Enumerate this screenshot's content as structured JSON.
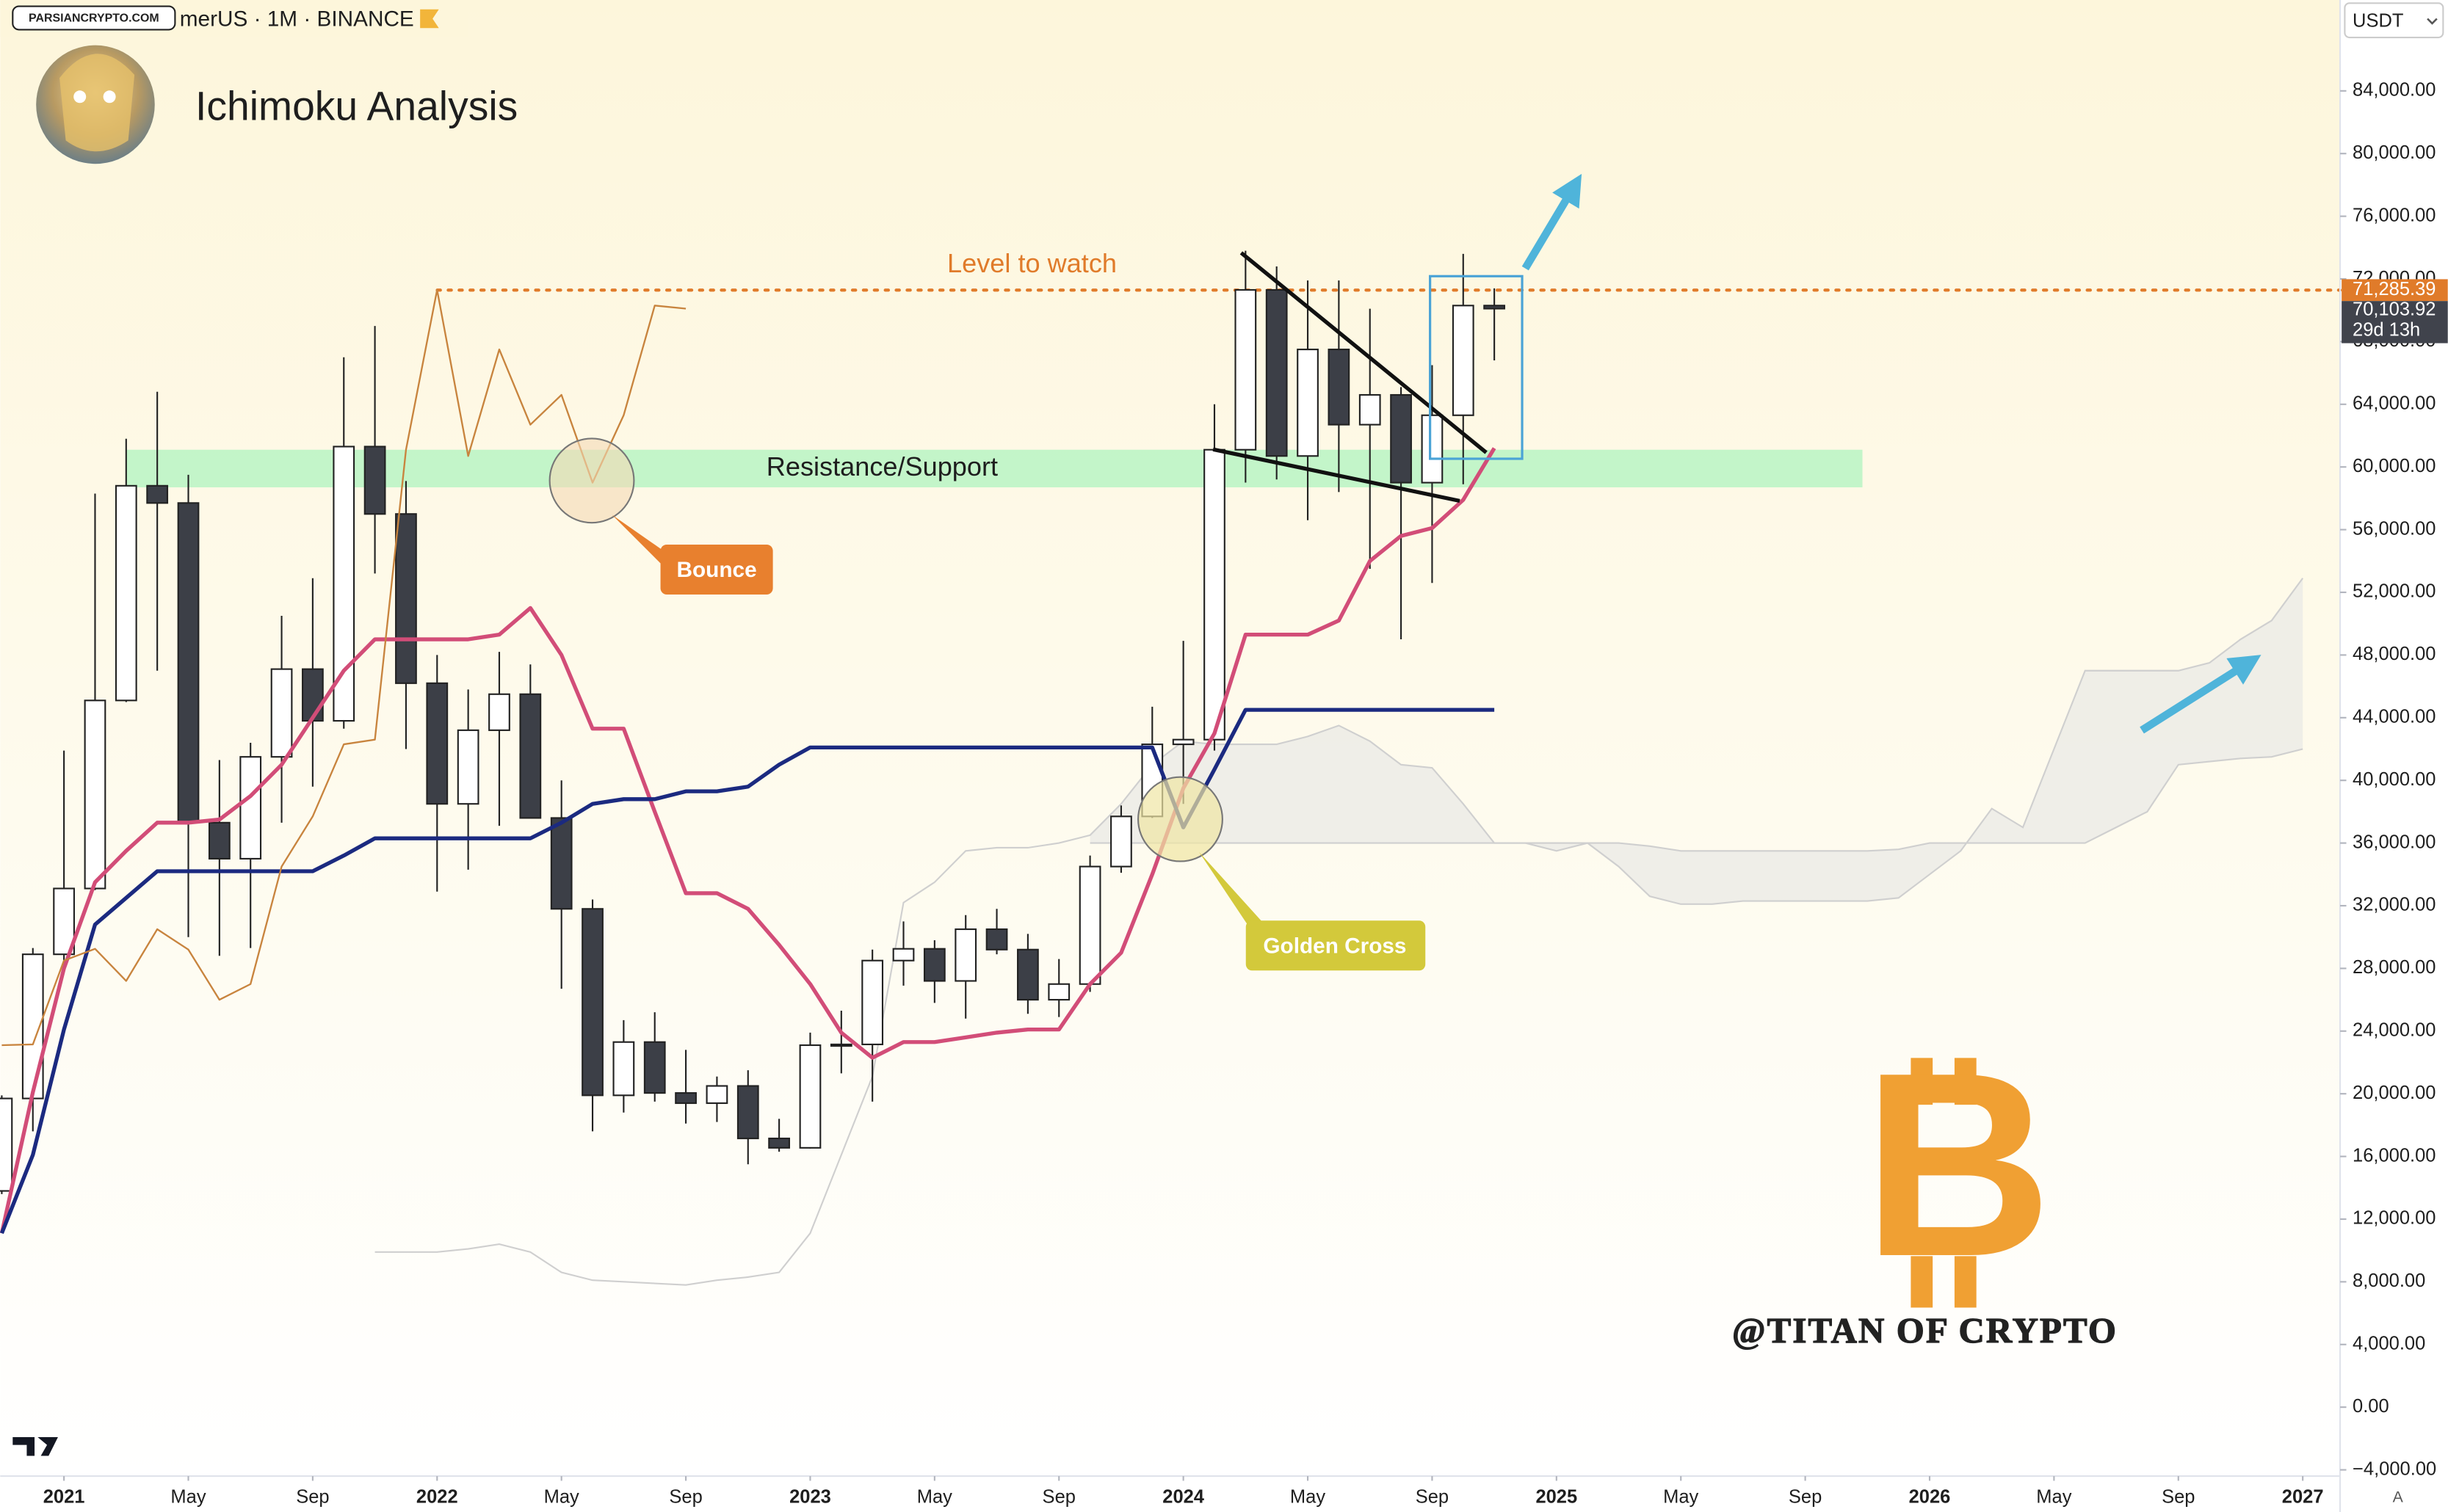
{
  "header": {
    "symbol": "merUS · 1M · BINANCE",
    "watermark": "PARSIANCRYPTO.COM",
    "currency": "USDT",
    "auto_scale": "A"
  },
  "chart_data": {
    "type": "candlestick",
    "title": "Ichimoku Analysis",
    "x": [
      "2020-11",
      "2020-12",
      "2021-01",
      "2021-02",
      "2021-03",
      "2021-04",
      "2021-05",
      "2021-06",
      "2021-07",
      "2021-08",
      "2021-09",
      "2021-10",
      "2021-11",
      "2021-12",
      "2022-01",
      "2022-02",
      "2022-03",
      "2022-04",
      "2022-05",
      "2022-06",
      "2022-07",
      "2022-08",
      "2022-09",
      "2022-10",
      "2022-11",
      "2022-12",
      "2023-01",
      "2023-02",
      "2023-03",
      "2023-04",
      "2023-05",
      "2023-06",
      "2023-07",
      "2023-08",
      "2023-09",
      "2023-10",
      "2023-11",
      "2023-12",
      "2024-01",
      "2024-02",
      "2024-03",
      "2024-04",
      "2024-05",
      "2024-06",
      "2024-07",
      "2024-08",
      "2024-09",
      "2024-10",
      "2024-11"
    ],
    "open": [
      13800,
      19700,
      28900,
      33100,
      45100,
      58800,
      57700,
      37300,
      35000,
      41500,
      47100,
      43800,
      61300,
      57000,
      46200,
      38500,
      43200,
      45500,
      37600,
      31800,
      19900,
      23300,
      20050,
      19400,
      20500,
      17150,
      16550,
      23100,
      23150,
      28500,
      29250,
      27200,
      30500,
      29200,
      26000,
      27000,
      34500,
      37700,
      42300,
      42600,
      61100,
      71300,
      60700,
      67500,
      62700,
      64600,
      59000,
      63300,
      70300
    ],
    "high": [
      19900,
      29300,
      41900,
      58300,
      61800,
      64800,
      59500,
      41300,
      42400,
      50500,
      52900,
      67000,
      69000,
      59100,
      48000,
      45800,
      48200,
      47400,
      40000,
      32400,
      24700,
      25200,
      22800,
      21100,
      21500,
      18400,
      23900,
      25300,
      29200,
      31000,
      29800,
      31400,
      31800,
      30200,
      28600,
      35200,
      38400,
      44700,
      48900,
      64000,
      73800,
      72800,
      71900,
      71900,
      70100,
      65100,
      66500,
      73600,
      71400
    ],
    "low": [
      13600,
      17600,
      28100,
      33000,
      45000,
      47000,
      30000,
      28800,
      29300,
      37300,
      39600,
      43300,
      53200,
      42000,
      32900,
      34300,
      37100,
      37700,
      26700,
      17600,
      18800,
      19500,
      18100,
      18200,
      15500,
      16300,
      16500,
      21300,
      19500,
      26900,
      25800,
      24800,
      28900,
      25100,
      24900,
      26500,
      34100,
      37600,
      38500,
      41900,
      59000,
      59200,
      56600,
      58400,
      53500,
      49000,
      52600,
      58900,
      66800
    ],
    "close": [
      19700,
      28900,
      33100,
      45100,
      58800,
      57700,
      37300,
      35000,
      41500,
      47100,
      43800,
      61300,
      57000,
      46200,
      38500,
      43200,
      45500,
      37600,
      31800,
      19900,
      23300,
      20050,
      19400,
      20500,
      17150,
      16550,
      23100,
      23150,
      28500,
      29250,
      27200,
      30500,
      29200,
      26000,
      27000,
      34500,
      37700,
      42300,
      42600,
      61100,
      71300,
      60700,
      67500,
      62700,
      64600,
      59000,
      63300,
      70300,
      70103.92
    ],
    "up_color": "#ffffff",
    "down_color": "#3c3f47",
    "lines": [
      {
        "color": "#d24d78",
        "width": 2.5,
        "values": [
          11100,
          20100,
          28000,
          33500,
          35500,
          37300,
          37300,
          37500,
          39000,
          41000,
          44000,
          47000,
          49000,
          49000,
          49000,
          49000,
          49300,
          51000,
          48000,
          43300,
          43300,
          38000,
          32800,
          32800,
          31800,
          29500,
          27000,
          23900,
          22300,
          23300,
          23300,
          23600,
          23900,
          24100,
          24100,
          27000,
          29000,
          34000,
          39500,
          43000,
          49300,
          49300,
          49300,
          50200,
          54000,
          55600,
          56100,
          57900,
          61200
        ]
      },
      {
        "color": "#1b2a80",
        "width": 2.5,
        "values": [
          11100,
          16100,
          24100,
          30800,
          32500,
          34200,
          34200,
          34200,
          34200,
          34200,
          34200,
          35200,
          36300,
          36300,
          36300,
          36300,
          36300,
          36300,
          37300,
          38500,
          38800,
          38800,
          39300,
          39300,
          39600,
          41000,
          42100,
          42100,
          42100,
          42100,
          42100,
          42100,
          42100,
          42100,
          42100,
          42100,
          42100,
          42100,
          37000,
          40700,
          44500,
          44500,
          44500,
          44500,
          44500,
          44500,
          44500,
          44500,
          44500
        ]
      },
      {
        "color": "#c8843e",
        "width": 1.1,
        "values": [
          23100,
          23150,
          28500,
          29250,
          27200,
          30500,
          29200,
          26000,
          27000,
          34500,
          37700,
          42300,
          42600,
          61100,
          71300,
          60700,
          67500,
          62700,
          64600,
          59000,
          63300,
          70300,
          70103.92,
          null,
          null,
          null,
          null,
          null,
          null,
          null,
          null,
          null,
          null,
          null,
          null,
          null,
          null,
          null,
          null,
          null,
          null,
          null,
          null,
          null,
          null,
          null,
          null,
          null,
          null
        ]
      }
    ],
    "cloud": {
      "color": "#ebebe6",
      "x": [
        "2021-11",
        "2021-12",
        "2022-01",
        "2022-02",
        "2022-03",
        "2022-04",
        "2022-05",
        "2022-06",
        "2022-07",
        "2022-08",
        "2022-09",
        "2022-10",
        "2022-11",
        "2022-12",
        "2023-01",
        "2023-02",
        "2023-03",
        "2023-04",
        "2023-05",
        "2023-06",
        "2023-07",
        "2023-08",
        "2023-09",
        "2023-10",
        "2023-11",
        "2023-12",
        "2024-01",
        "2024-02",
        "2024-03",
        "2024-04",
        "2024-05",
        "2024-06",
        "2024-07",
        "2024-08",
        "2024-09",
        "2024-10",
        "2024-11",
        "2024-12",
        "2025-01",
        "2025-02",
        "2025-03",
        "2025-04",
        "2025-05",
        "2025-06",
        "2025-07",
        "2025-08",
        "2025-09",
        "2025-10",
        "2025-11",
        "2025-12",
        "2026-01",
        "2026-02",
        "2026-03",
        "2026-04",
        "2026-05",
        "2026-06",
        "2026-07",
        "2026-08",
        "2026-09",
        "2026-10",
        "2026-11",
        "2026-12",
        "2027-01"
      ],
      "span_a": [
        9900,
        9900,
        9900,
        10100,
        10400,
        9900,
        8600,
        8100,
        8000,
        7900,
        7800,
        8100,
        8300,
        8600,
        11100,
        16100,
        21100,
        32200,
        33500,
        35500,
        35700,
        35700,
        36000,
        36500,
        38500,
        41000,
        42500,
        42300,
        42300,
        42300,
        42800,
        43500,
        42500,
        41000,
        40800,
        38500,
        36000,
        36000,
        35500,
        36000,
        34500,
        32600,
        32100,
        32100,
        32300,
        32300,
        32300,
        32300,
        32300,
        32500,
        34000,
        35500,
        38200,
        37000,
        42000,
        47000,
        47000,
        47000,
        47000,
        47500,
        49000,
        50200,
        52900
      ],
      "span_b": [
        null,
        null,
        null,
        null,
        null,
        null,
        null,
        null,
        null,
        null,
        null,
        null,
        null,
        null,
        null,
        null,
        null,
        null,
        null,
        null,
        null,
        null,
        null,
        36000,
        36000,
        36000,
        36000,
        36000,
        36000,
        36000,
        36000,
        36000,
        36000,
        36000,
        36000,
        36000,
        36000,
        36000,
        36000,
        36000,
        36000,
        35800,
        35500,
        35500,
        35500,
        35500,
        35500,
        35500,
        35500,
        35600,
        36000,
        36000,
        36000,
        36000,
        36000,
        36000,
        37000,
        38000,
        41000,
        41200,
        41400,
        41500,
        42000
      ]
    },
    "xlim": [
      "2020-11",
      "2027-02"
    ],
    "xticks": [
      {
        "value": "2021-01",
        "label": "2021"
      },
      {
        "value": "2021-05",
        "label": "May"
      },
      {
        "value": "2021-09",
        "label": "Sep"
      },
      {
        "value": "2022-01",
        "label": "2022"
      },
      {
        "value": "2022-05",
        "label": "May"
      },
      {
        "value": "2022-09",
        "label": "Sep"
      },
      {
        "value": "2023-01",
        "label": "2023"
      },
      {
        "value": "2023-05",
        "label": "May"
      },
      {
        "value": "2023-09",
        "label": "Sep"
      },
      {
        "value": "2024-01",
        "label": "2024"
      },
      {
        "value": "2024-05",
        "label": "May"
      },
      {
        "value": "2024-09",
        "label": "Sep"
      },
      {
        "value": "2025-01",
        "label": "2025"
      },
      {
        "value": "2025-05",
        "label": "May"
      },
      {
        "value": "2025-09",
        "label": "Sep"
      },
      {
        "value": "2026-01",
        "label": "2026"
      },
      {
        "value": "2026-05",
        "label": "May"
      },
      {
        "value": "2026-09",
        "label": "Sep"
      },
      {
        "value": "2027-01",
        "label": "2027"
      }
    ],
    "ylim": [
      -4400,
      89800
    ],
    "yticks": [
      {
        "value": -4000,
        "label": "−4,000.00"
      },
      {
        "value": 0,
        "label": "0.00"
      },
      {
        "value": 4000,
        "label": "4,000.00"
      },
      {
        "value": 8000,
        "label": "8,000.00"
      },
      {
        "value": 12000,
        "label": "12,000.00"
      },
      {
        "value": 16000,
        "label": "16,000.00"
      },
      {
        "value": 20000,
        "label": "20,000.00"
      },
      {
        "value": 24000,
        "label": "24,000.00"
      },
      {
        "value": 28000,
        "label": "28,000.00"
      },
      {
        "value": 32000,
        "label": "32,000.00"
      },
      {
        "value": 36000,
        "label": "36,000.00"
      },
      {
        "value": 40000,
        "label": "40,000.00"
      },
      {
        "value": 44000,
        "label": "44,000.00"
      },
      {
        "value": 48000,
        "label": "48,000.00"
      },
      {
        "value": 52000,
        "label": "52,000.00"
      },
      {
        "value": 56000,
        "label": "56,000.00"
      },
      {
        "value": 60000,
        "label": "60,000.00"
      },
      {
        "value": 64000,
        "label": "64,000.00"
      },
      {
        "value": 68000,
        "label": "68,000.00"
      },
      {
        "value": 72000,
        "label": "72,000.00"
      },
      {
        "value": 76000,
        "label": "76,000.00"
      },
      {
        "value": 80000,
        "label": "80,000.00"
      },
      {
        "value": 84000,
        "label": "84,000.00"
      }
    ],
    "grid": false,
    "level": {
      "value": 71285.39,
      "label": "71,285.39",
      "text": "Level to watch",
      "color": "#e07b2a"
    },
    "last_price": {
      "value": 70103.92,
      "label": "70,103.92",
      "countdown": "29d 13h"
    },
    "zone": {
      "label": "Resistance/Support",
      "from": 58700,
      "to": 61100,
      "color": "#b9f4c3"
    },
    "annotations": [
      "Bounce",
      "Golden Cross"
    ],
    "signature": "@TITAN OF CRYPTO",
    "logo": "B"
  }
}
